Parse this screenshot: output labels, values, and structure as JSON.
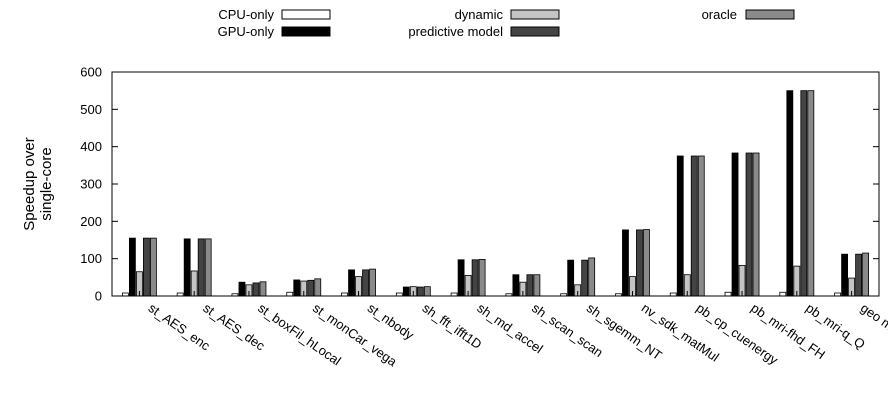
{
  "chart_data": {
    "type": "bar",
    "ylabel": [
      "Speedup over",
      "single-core"
    ],
    "ylim": [
      0,
      600
    ],
    "yticks": [
      0,
      100,
      200,
      300,
      400,
      500,
      600
    ],
    "grid": false,
    "legend_position": "top",
    "categories": [
      "st_AES_enc",
      "st_AES_dec",
      "st_boxFil_hLocal",
      "st_monCar_vega",
      "st_nbody",
      "sh_fft_ifft1D",
      "sh_md_accel",
      "sh_scan_scan",
      "sh_sgemm_NT",
      "nv_sdk_matMul",
      "pb_cp_cuenergy",
      "pb_mri-fhd_FH",
      "pb_mri-q_Q",
      "geo mean"
    ],
    "series": [
      {
        "name": "CPU-only",
        "color": "#ffffff",
        "values": [
          8,
          8,
          6,
          10,
          8,
          8,
          8,
          6,
          6,
          6,
          8,
          10,
          10,
          8
        ]
      },
      {
        "name": "GPU-only",
        "color": "#000000",
        "values": [
          155,
          153,
          37,
          43,
          70,
          24,
          97,
          57,
          96,
          177,
          375,
          383,
          550,
          112
        ]
      },
      {
        "name": "dynamic",
        "color": "#c4c4c4",
        "values": [
          65,
          67,
          30,
          40,
          52,
          25,
          55,
          37,
          30,
          52,
          57,
          82,
          80,
          48
        ]
      },
      {
        "name": "predictive model",
        "color": "#444444",
        "values": [
          155,
          153,
          35,
          42,
          70,
          24,
          97,
          57,
          96,
          177,
          375,
          383,
          550,
          112
        ]
      },
      {
        "name": "oracle",
        "color": "#8a8a8a",
        "values": [
          155,
          153,
          38,
          46,
          72,
          25,
          98,
          57,
          102,
          178,
          375,
          383,
          550,
          115
        ]
      }
    ]
  }
}
